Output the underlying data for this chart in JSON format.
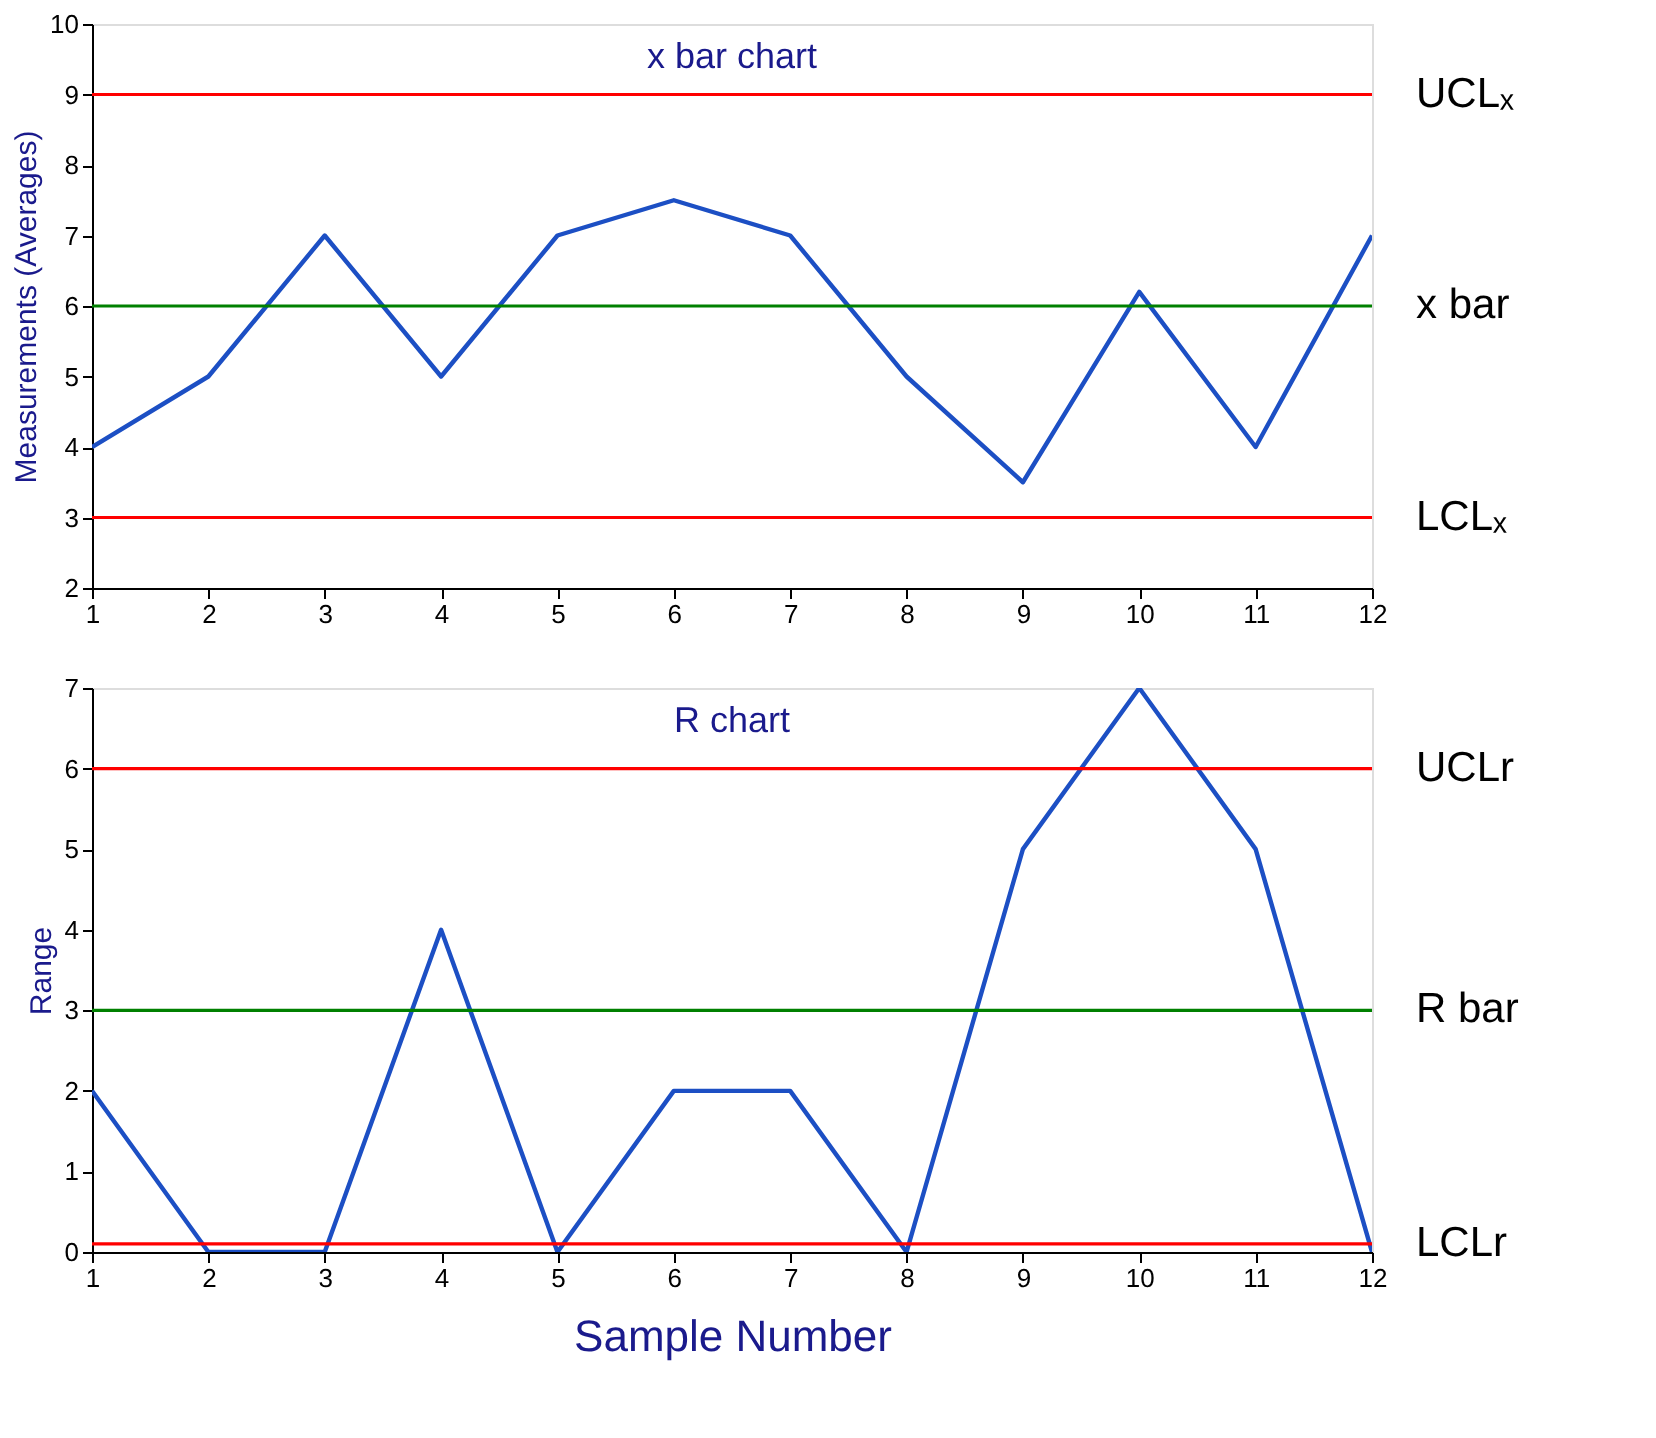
{
  "chart_data": [
    {
      "type": "line",
      "title": "x bar chart",
      "ylabel": "Measurements (Averages)",
      "x": [
        1,
        2,
        3,
        4,
        5,
        6,
        7,
        8,
        9,
        10,
        11,
        12
      ],
      "series": [
        {
          "color": "#1c4fc4",
          "values": [
            4,
            5,
            7,
            5,
            7,
            7.5,
            7,
            5,
            3.5,
            6.2,
            4,
            7
          ]
        }
      ],
      "xlim": [
        1,
        12
      ],
      "xticks": [
        1,
        2,
        3,
        4,
        5,
        6,
        7,
        8,
        9,
        10,
        11,
        12
      ],
      "ylim": [
        2,
        10
      ],
      "yticks": [
        2,
        3,
        4,
        5,
        6,
        7,
        8,
        9,
        10
      ],
      "ref_lines": [
        {
          "axis": "y",
          "value": 9,
          "label": "UCLₓ",
          "color": "#ff0000"
        },
        {
          "axis": "y",
          "value": 6,
          "label": "x bar",
          "color": "#008000"
        },
        {
          "axis": "y",
          "value": 3,
          "label": "LCLₓ",
          "color": "#ff0000"
        }
      ],
      "grid": false,
      "legend": false
    },
    {
      "type": "line",
      "title": "R chart",
      "ylabel": "Range",
      "xlabel": "Sample Number",
      "x": [
        1,
        2,
        3,
        4,
        5,
        6,
        7,
        8,
        9,
        10,
        11,
        12
      ],
      "series": [
        {
          "color": "#1c4fc4",
          "values": [
            2,
            0,
            0,
            4,
            0,
            2,
            2,
            0,
            5,
            7,
            5,
            0
          ]
        }
      ],
      "xlim": [
        1,
        12
      ],
      "xticks": [
        1,
        2,
        3,
        4,
        5,
        6,
        7,
        8,
        9,
        10,
        11,
        12
      ],
      "ylim": [
        0,
        7
      ],
      "yticks": [
        0,
        1,
        2,
        3,
        4,
        5,
        6,
        7
      ],
      "ref_lines": [
        {
          "axis": "y",
          "value": 6,
          "label": "UCLr",
          "color": "#ff0000"
        },
        {
          "axis": "y",
          "value": 3,
          "label": "R bar",
          "color": "#008000"
        },
        {
          "axis": "y",
          "value": 0.1,
          "label": "LCLr",
          "color": "#ff0000"
        }
      ],
      "grid": false,
      "legend": false
    }
  ]
}
